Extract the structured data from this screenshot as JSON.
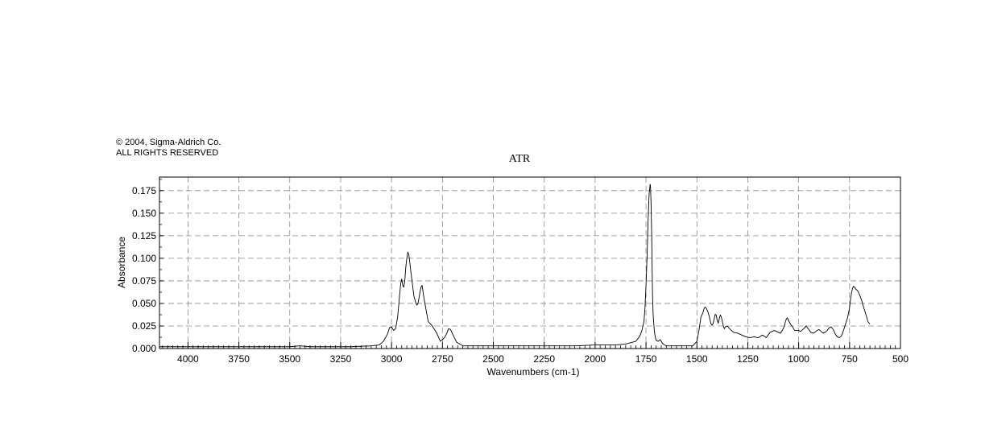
{
  "copyright": {
    "line1": "© 2004, Sigma-Aldrich Co.",
    "line2": "ALL RIGHTS RESERVED"
  },
  "chart_data": {
    "type": "line",
    "title": "ATR",
    "xlabel": "Wavenumbers (cm-1)",
    "ylabel": "Absorbance",
    "xlim": [
      4140,
      500
    ],
    "ylim": [
      0,
      0.19
    ],
    "x_reversed": true,
    "grid": true,
    "line_color": "#000000",
    "xticks": [
      4000,
      3750,
      3500,
      3250,
      3000,
      2750,
      2500,
      2250,
      2000,
      1750,
      1500,
      1250,
      1000,
      750,
      500
    ],
    "xtick_labels": [
      "4000",
      "3750",
      "3500",
      "3250",
      "3000",
      "2750",
      "2500",
      "2250",
      "2000",
      "1750",
      "1500",
      "1250",
      "1000",
      "750",
      "500"
    ],
    "yticks": [
      0,
      0.025,
      0.05,
      0.075,
      0.1,
      0.125,
      0.15,
      0.175
    ],
    "ytick_labels": [
      "0.000",
      "0.025",
      "0.050",
      "0.075",
      "0.100",
      "0.125",
      "0.150",
      "0.175"
    ],
    "series": [
      {
        "x": [
          4140,
          4000,
          3800,
          3600,
          3500,
          3450,
          3400,
          3300,
          3200,
          3100,
          3060,
          3040,
          3020,
          3010,
          3000,
          2990,
          2980,
          2970,
          2960,
          2955,
          2950,
          2945,
          2940,
          2935,
          2930,
          2925,
          2920,
          2915,
          2910,
          2905,
          2900,
          2890,
          2880,
          2875,
          2870,
          2865,
          2860,
          2855,
          2850,
          2840,
          2820,
          2800,
          2780,
          2760,
          2740,
          2730,
          2720,
          2710,
          2700,
          2680,
          2650,
          2600,
          2500,
          2400,
          2300,
          2200,
          2100,
          2000,
          1900,
          1850,
          1800,
          1780,
          1770,
          1760,
          1755,
          1750,
          1745,
          1740,
          1735,
          1730,
          1728,
          1725,
          1722,
          1720,
          1718,
          1715,
          1710,
          1705,
          1700,
          1690,
          1680,
          1670,
          1660,
          1650,
          1640,
          1630,
          1620,
          1610,
          1600,
          1580,
          1560,
          1540,
          1520,
          1500,
          1490,
          1480,
          1470,
          1465,
          1460,
          1455,
          1450,
          1445,
          1440,
          1435,
          1430,
          1425,
          1420,
          1415,
          1410,
          1405,
          1400,
          1395,
          1390,
          1385,
          1380,
          1375,
          1370,
          1365,
          1360,
          1350,
          1340,
          1330,
          1320,
          1300,
          1280,
          1260,
          1240,
          1220,
          1200,
          1190,
          1180,
          1170,
          1160,
          1150,
          1140,
          1120,
          1100,
          1090,
          1080,
          1070,
          1065,
          1060,
          1055,
          1050,
          1040,
          1030,
          1020,
          1010,
          1000,
          990,
          980,
          970,
          965,
          960,
          950,
          940,
          930,
          920,
          910,
          900,
          890,
          880,
          870,
          860,
          850,
          840,
          830,
          820,
          810,
          800,
          790,
          780,
          770,
          760,
          750,
          745,
          740,
          735,
          730,
          725,
          720,
          710,
          700,
          690,
          680,
          670,
          660,
          650
        ],
        "y": [
          0.002,
          0.002,
          0.002,
          0.002,
          0.002,
          0.003,
          0.002,
          0.002,
          0.002,
          0.003,
          0.004,
          0.008,
          0.016,
          0.023,
          0.024,
          0.02,
          0.022,
          0.035,
          0.06,
          0.072,
          0.077,
          0.07,
          0.068,
          0.075,
          0.09,
          0.1,
          0.107,
          0.104,
          0.095,
          0.085,
          0.076,
          0.058,
          0.05,
          0.048,
          0.05,
          0.056,
          0.063,
          0.068,
          0.07,
          0.055,
          0.03,
          0.025,
          0.018,
          0.008,
          0.012,
          0.016,
          0.022,
          0.021,
          0.016,
          0.007,
          0.003,
          0.003,
          0.003,
          0.003,
          0.003,
          0.003,
          0.003,
          0.004,
          0.004,
          0.005,
          0.008,
          0.014,
          0.02,
          0.03,
          0.045,
          0.07,
          0.1,
          0.14,
          0.17,
          0.182,
          0.18,
          0.16,
          0.125,
          0.09,
          0.06,
          0.038,
          0.022,
          0.013,
          0.009,
          0.008,
          0.01,
          0.006,
          0.004,
          0.003,
          0.003,
          0.003,
          0.003,
          0.003,
          0.003,
          0.003,
          0.003,
          0.003,
          0.003,
          0.008,
          0.02,
          0.035,
          0.04,
          0.044,
          0.046,
          0.045,
          0.043,
          0.04,
          0.036,
          0.031,
          0.027,
          0.026,
          0.028,
          0.033,
          0.038,
          0.037,
          0.031,
          0.028,
          0.033,
          0.037,
          0.035,
          0.03,
          0.025,
          0.022,
          0.024,
          0.025,
          0.022,
          0.02,
          0.018,
          0.017,
          0.015,
          0.013,
          0.012,
          0.013,
          0.012,
          0.013,
          0.015,
          0.014,
          0.012,
          0.015,
          0.018,
          0.02,
          0.018,
          0.017,
          0.02,
          0.025,
          0.03,
          0.033,
          0.034,
          0.031,
          0.027,
          0.024,
          0.02,
          0.02,
          0.02,
          0.019,
          0.021,
          0.023,
          0.025,
          0.024,
          0.021,
          0.018,
          0.017,
          0.018,
          0.02,
          0.021,
          0.019,
          0.017,
          0.018,
          0.02,
          0.023,
          0.024,
          0.021,
          0.016,
          0.013,
          0.012,
          0.014,
          0.02,
          0.027,
          0.034,
          0.045,
          0.055,
          0.062,
          0.067,
          0.069,
          0.068,
          0.066,
          0.064,
          0.059,
          0.053,
          0.045,
          0.038,
          0.03,
          0.027
        ]
      }
    ]
  }
}
